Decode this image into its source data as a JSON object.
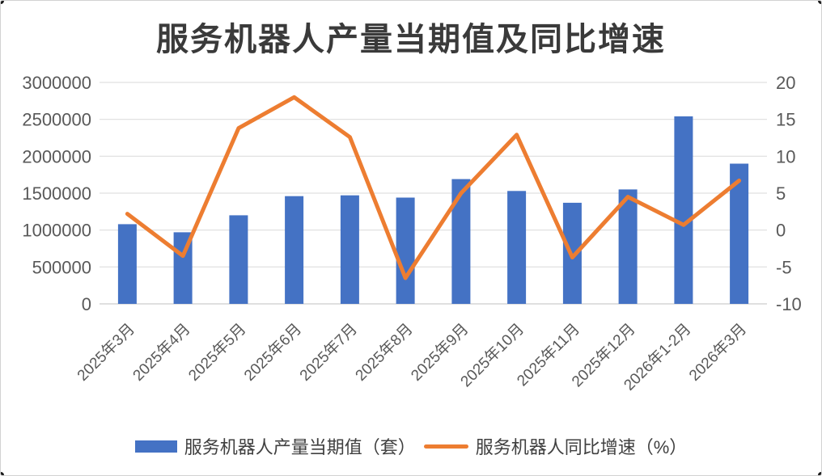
{
  "chart_data": {
    "type": "combo",
    "title": "服务机器人产量当期值及同比增速",
    "categories": [
      "2025年3月",
      "2025年4月",
      "2025年5月",
      "2025年6月",
      "2025年7月",
      "2025年8月",
      "2025年9月",
      "2025年10月",
      "2025年11月",
      "2025年12月",
      "2026年1-2月",
      "2026年3月"
    ],
    "series": [
      {
        "name": "服务机器人产量当期值（套）",
        "type": "bar",
        "axis": "left",
        "color": "#4472C4",
        "values": [
          1080000,
          970000,
          1200000,
          1460000,
          1470000,
          1440000,
          1690000,
          1530000,
          1370000,
          1550000,
          2540000,
          1900000
        ]
      },
      {
        "name": "服务机器人同比增速（%）",
        "type": "line",
        "axis": "right",
        "color": "#ED7D31",
        "values": [
          2.2,
          -3.5,
          13.8,
          18,
          12.6,
          -6.5,
          5,
          12.9,
          -3.7,
          4.5,
          0.7,
          6.7
        ]
      }
    ],
    "left_axis": {
      "min": 0,
      "max": 3000000,
      "step": 500000,
      "tick_labels": [
        "3000000",
        "2500000",
        "2000000",
        "1500000",
        "1000000",
        "500000",
        "0"
      ]
    },
    "right_axis": {
      "min": -10,
      "max": 20,
      "step": 5,
      "tick_labels": [
        "20",
        "15",
        "10",
        "5",
        "0",
        "-5",
        "-10"
      ]
    },
    "grid": {
      "show": true,
      "color": "#D9D9D9",
      "axis_line_color": "#BFBFBF"
    },
    "axis_text_color": "#595959",
    "title_color": "#3a3a3a",
    "x_label_rotation_deg": 45,
    "legend_position": "bottom"
  }
}
